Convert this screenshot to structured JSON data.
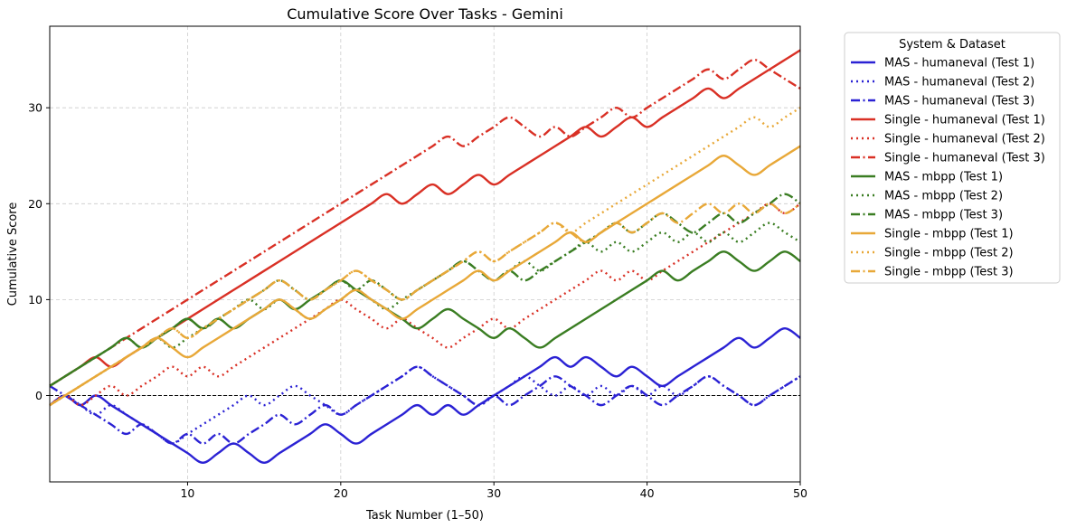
{
  "chart_data": {
    "type": "line",
    "title": "Cumulative Score Over Tasks - Gemini",
    "xlabel": "Task Number (1–50)",
    "ylabel": "Cumulative Score",
    "xlim": [
      1,
      50
    ],
    "ylim": [
      -9,
      38.5
    ],
    "xticks": [
      10,
      20,
      30,
      40,
      50
    ],
    "yticks": [
      0,
      10,
      20,
      30
    ],
    "grid": true,
    "zero_line": true,
    "legend": {
      "title": "System & Dataset",
      "placement": "outside-right"
    },
    "x": [
      1,
      2,
      3,
      4,
      5,
      6,
      7,
      8,
      9,
      10,
      11,
      12,
      13,
      14,
      15,
      16,
      17,
      18,
      19,
      20,
      21,
      22,
      23,
      24,
      25,
      26,
      27,
      28,
      29,
      30,
      31,
      32,
      33,
      34,
      35,
      36,
      37,
      38,
      39,
      40,
      41,
      42,
      43,
      44,
      45,
      46,
      47,
      48,
      49,
      50
    ],
    "series": [
      {
        "name": "MAS - humaneval (Test 1)",
        "color": "#2b22d4",
        "dash": "solid",
        "values": [
          -1,
          0,
          -1,
          0,
          -1,
          -2,
          -3,
          -4,
          -5,
          -6,
          -7,
          -6,
          -5,
          -6,
          -7,
          -6,
          -5,
          -4,
          -3,
          -4,
          -5,
          -4,
          -3,
          -2,
          -1,
          -2,
          -1,
          -2,
          -1,
          0,
          1,
          2,
          3,
          4,
          3,
          4,
          3,
          2,
          3,
          2,
          1,
          2,
          3,
          4,
          5,
          6,
          5,
          6,
          7,
          6
        ]
      },
      {
        "name": "MAS - humaneval (Test 2)",
        "color": "#2b22d4",
        "dash": "dot",
        "values": [
          -1,
          0,
          -1,
          -2,
          -1,
          -2,
          -3,
          -4,
          -5,
          -4,
          -3,
          -2,
          -1,
          0,
          -1,
          0,
          1,
          0,
          -1,
          -2,
          -1,
          0,
          1,
          2,
          3,
          2,
          1,
          0,
          -1,
          0,
          1,
          2,
          1,
          0,
          1,
          0,
          1,
          0,
          1,
          0,
          1,
          0,
          1,
          2,
          1,
          0,
          -1,
          0,
          1,
          2
        ]
      },
      {
        "name": "MAS - humaneval (Test 3)",
        "color": "#2b22d4",
        "dash": "dashdot",
        "values": [
          1,
          0,
          -1,
          -2,
          -3,
          -4,
          -3,
          -4,
          -5,
          -4,
          -5,
          -4,
          -5,
          -4,
          -3,
          -2,
          -3,
          -2,
          -1,
          -2,
          -1,
          0,
          1,
          2,
          3,
          2,
          1,
          0,
          -1,
          0,
          -1,
          0,
          1,
          2,
          1,
          0,
          -1,
          0,
          1,
          0,
          -1,
          0,
          1,
          2,
          1,
          0,
          -1,
          0,
          1,
          2
        ]
      },
      {
        "name": "Single - humaneval (Test 1)",
        "color": "#d93025",
        "dash": "solid",
        "values": [
          1,
          2,
          3,
          4,
          3,
          4,
          5,
          6,
          7,
          8,
          9,
          10,
          11,
          12,
          13,
          14,
          15,
          16,
          17,
          18,
          19,
          20,
          21,
          20,
          21,
          22,
          21,
          22,
          23,
          22,
          23,
          24,
          25,
          26,
          27,
          28,
          27,
          28,
          29,
          28,
          29,
          30,
          31,
          32,
          31,
          32,
          33,
          34,
          35,
          36
        ]
      },
      {
        "name": "Single - humaneval (Test 2)",
        "color": "#d93025",
        "dash": "dot",
        "values": [
          -1,
          0,
          -1,
          0,
          1,
          0,
          1,
          2,
          3,
          2,
          3,
          2,
          3,
          4,
          5,
          6,
          7,
          8,
          9,
          10,
          9,
          8,
          7,
          8,
          7,
          6,
          5,
          6,
          7,
          8,
          7,
          8,
          9,
          10,
          11,
          12,
          13,
          12,
          13,
          12,
          13,
          14,
          15,
          16,
          17,
          18,
          19,
          20,
          19,
          20
        ]
      },
      {
        "name": "Single - humaneval (Test 3)",
        "color": "#d93025",
        "dash": "dashdot",
        "values": [
          1,
          2,
          3,
          4,
          5,
          6,
          7,
          8,
          9,
          10,
          11,
          12,
          13,
          14,
          15,
          16,
          17,
          18,
          19,
          20,
          21,
          22,
          23,
          24,
          25,
          26,
          27,
          26,
          27,
          28,
          29,
          28,
          27,
          28,
          27,
          28,
          29,
          30,
          29,
          30,
          31,
          32,
          33,
          34,
          33,
          34,
          35,
          34,
          33,
          32
        ]
      },
      {
        "name": "MAS - mbpp (Test 1)",
        "color": "#3a7d22",
        "dash": "solid",
        "values": [
          1,
          2,
          3,
          4,
          5,
          6,
          5,
          6,
          7,
          8,
          7,
          8,
          7,
          8,
          9,
          10,
          9,
          10,
          11,
          12,
          11,
          10,
          9,
          8,
          7,
          8,
          9,
          8,
          7,
          6,
          7,
          6,
          5,
          6,
          7,
          8,
          9,
          10,
          11,
          12,
          13,
          12,
          13,
          14,
          15,
          14,
          13,
          14,
          15,
          14
        ]
      },
      {
        "name": "MAS - mbpp (Test 2)",
        "color": "#3a7d22",
        "dash": "dot",
        "values": [
          -1,
          0,
          1,
          2,
          3,
          4,
          5,
          6,
          5,
          6,
          7,
          8,
          9,
          10,
          9,
          10,
          9,
          8,
          9,
          10,
          11,
          10,
          9,
          10,
          11,
          12,
          13,
          14,
          13,
          12,
          13,
          14,
          13,
          14,
          15,
          16,
          15,
          16,
          15,
          16,
          17,
          16,
          17,
          16,
          17,
          16,
          17,
          18,
          17,
          16
        ]
      },
      {
        "name": "MAS - mbpp (Test 3)",
        "color": "#3a7d22",
        "dash": "dashdot",
        "values": [
          1,
          2,
          3,
          4,
          5,
          6,
          5,
          6,
          7,
          8,
          7,
          8,
          9,
          10,
          11,
          12,
          11,
          10,
          11,
          12,
          11,
          12,
          11,
          10,
          11,
          12,
          13,
          14,
          13,
          12,
          13,
          12,
          13,
          14,
          15,
          16,
          17,
          18,
          17,
          18,
          19,
          18,
          17,
          18,
          19,
          18,
          19,
          20,
          21,
          20
        ]
      },
      {
        "name": "Single - mbpp (Test 1)",
        "color": "#e8a838",
        "dash": "solid",
        "values": [
          -1,
          0,
          1,
          2,
          3,
          4,
          5,
          6,
          5,
          4,
          5,
          6,
          7,
          8,
          9,
          10,
          9,
          8,
          9,
          10,
          11,
          10,
          9,
          8,
          9,
          10,
          11,
          12,
          13,
          12,
          13,
          14,
          15,
          16,
          17,
          16,
          17,
          18,
          19,
          20,
          21,
          22,
          23,
          24,
          25,
          24,
          23,
          24,
          25,
          26
        ]
      },
      {
        "name": "Single - mbpp (Test 2)",
        "color": "#e8a838",
        "dash": "dot",
        "values": [
          -1,
          0,
          1,
          2,
          3,
          4,
          5,
          6,
          7,
          6,
          7,
          8,
          9,
          10,
          11,
          12,
          11,
          10,
          11,
          12,
          13,
          12,
          11,
          10,
          11,
          12,
          13,
          14,
          15,
          14,
          15,
          16,
          17,
          18,
          17,
          18,
          19,
          20,
          21,
          22,
          23,
          24,
          25,
          26,
          27,
          28,
          29,
          28,
          29,
          30
        ]
      },
      {
        "name": "Single - mbpp (Test 3)",
        "color": "#e8a838",
        "dash": "dashdot",
        "values": [
          -1,
          0,
          1,
          2,
          3,
          4,
          5,
          6,
          7,
          6,
          7,
          8,
          9,
          10,
          11,
          12,
          11,
          10,
          11,
          12,
          13,
          12,
          11,
          10,
          11,
          12,
          13,
          14,
          15,
          14,
          15,
          16,
          17,
          18,
          17,
          16,
          17,
          18,
          17,
          18,
          19,
          18,
          19,
          20,
          19,
          20,
          19,
          20,
          19,
          20
        ]
      }
    ]
  }
}
